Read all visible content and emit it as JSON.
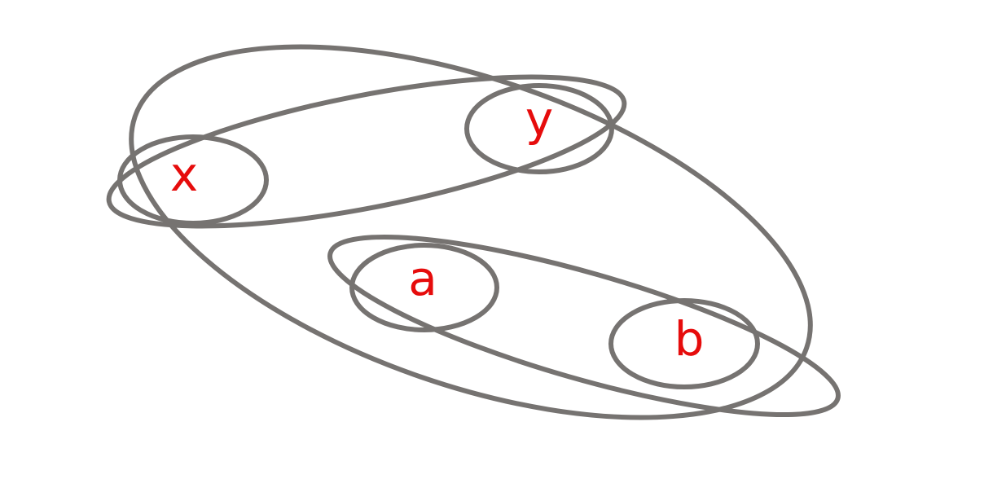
{
  "colors": {
    "stroke": "#767371",
    "label": "#e60c0c",
    "background": "#ffffff"
  },
  "nodes": {
    "x": "x",
    "y": "y",
    "a": "a",
    "b": "b"
  }
}
